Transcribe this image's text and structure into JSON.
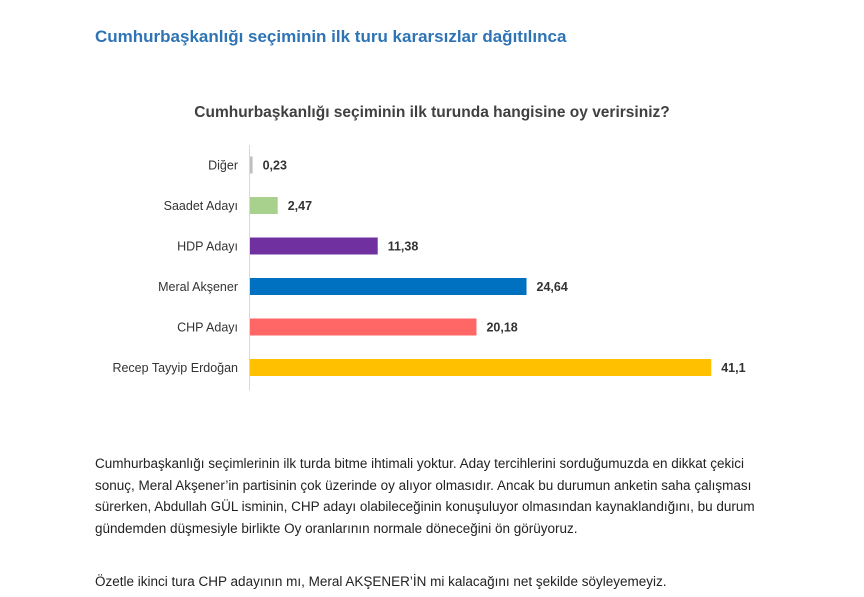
{
  "page": {
    "heading": "Cumhurbaşkanlığı seçiminin ilk turu kararsızlar dağıtılınca",
    "paragraphs": [
      "Cumhurbaşkanlığı seçimlerinin ilk turda bitme ihtimali yoktur. Aday tercihlerini sorduğumuzda en dikkat çekici sonuç, Meral Akşener’in partisinin çok üzerinde oy alıyor olmasıdır. Ancak bu durumun anketin saha çalışması sürerken, Abdullah GÜL isminin, CHP adayı olabileceğinin konuşuluyor olmasından kaynaklandığını, bu durum gündemden düşmesiyle birlikte Oy oranlarının normale döneceğini ön görüyoruz.",
      "Özetle ikinci tura CHP adayının mı, Meral AKŞENER’İN mi kalacağını net şekilde söyleyemeyiz."
    ]
  },
  "chart_data": {
    "type": "bar",
    "orientation": "horizontal",
    "title": "Cumhurbaşkanlığı seçiminin ilk turunda hangisine oy verirsiniz?",
    "xlabel": "",
    "ylabel": "",
    "xlim": [
      0,
      45
    ],
    "grid": false,
    "legend": "none",
    "categories": [
      "Diğer",
      "Saadet Adayı",
      "HDP Adayı",
      "Meral Akşener",
      "CHP Adayı",
      "Recep Tayyip Erdoğan"
    ],
    "values": [
      0.23,
      2.47,
      11.38,
      24.64,
      20.18,
      41.1
    ],
    "value_labels": [
      "0,23",
      "2,47",
      "11,38",
      "24,64",
      "20,18",
      "41,1"
    ],
    "colors": [
      "#bfbfbf",
      "#a9d18e",
      "#7030a0",
      "#0070c0",
      "#ff6666",
      "#ffc000"
    ]
  }
}
